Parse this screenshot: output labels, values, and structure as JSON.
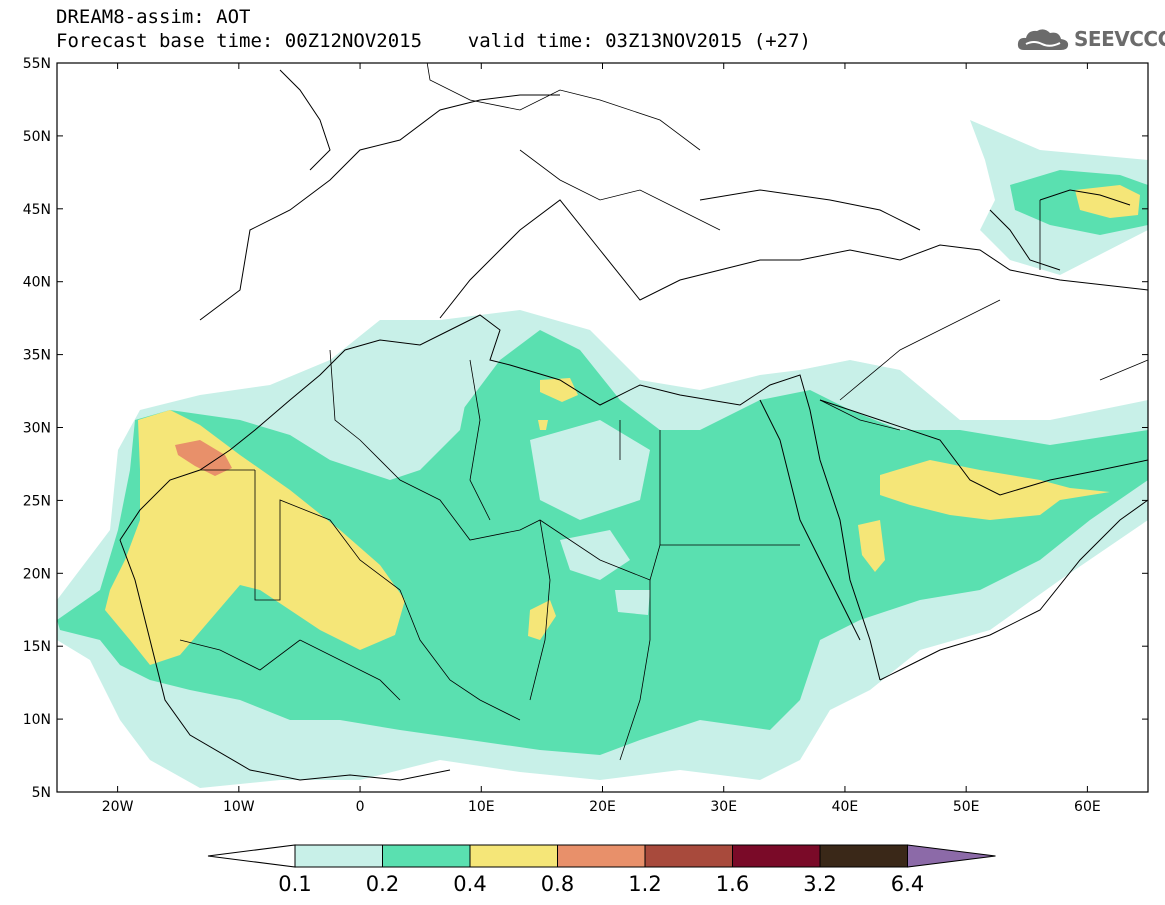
{
  "title": {
    "line1": "DREAM8-assim: AOT",
    "line2": "Forecast base time: 00Z12NOV2015    valid time: 03Z13NOV2015 (+27)"
  },
  "logo": {
    "text": "SEEVCCC",
    "icon": "cloud-icon"
  },
  "map": {
    "lon_range": [
      -25,
      65
    ],
    "lat_range": [
      5,
      55
    ],
    "lat_labels": [
      "55N",
      "50N",
      "45N",
      "40N",
      "35N",
      "30N",
      "25N",
      "20N",
      "15N",
      "10N",
      "5N"
    ],
    "lon_labels": [
      "20W",
      "10W",
      "0",
      "10E",
      "20E",
      "30E",
      "40E",
      "50E",
      "60E"
    ]
  },
  "colorbar": {
    "thresholds": [
      "0.1",
      "0.2",
      "0.4",
      "0.8",
      "1.2",
      "1.6",
      "3.2",
      "6.4"
    ],
    "colors": [
      "#ffffff",
      "#c8f0e8",
      "#5ae0b0",
      "#f5e678",
      "#e8906a",
      "#a84a3c",
      "#7a0a28",
      "#3a2818",
      "#8c6aa8"
    ]
  }
}
